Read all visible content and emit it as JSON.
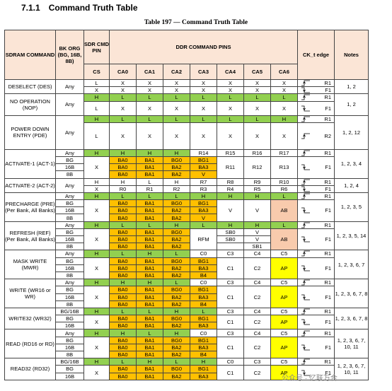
{
  "section": {
    "number": "7.1.1",
    "title": "Command Truth Table"
  },
  "caption": "Table 197 — Command Truth Table",
  "headers": {
    "sdram_command": "SDRAM COMMAND",
    "bk_org": "BK ORG (BG, 16B, 8B)",
    "sdr_cmd_pin": "SDR CMD PIN",
    "ddr_command_pins": "DDR COMMAND PINS",
    "ck_edge": "CK_t edge",
    "notes": "Notes",
    "cs": "CS",
    "ca": [
      "CA0",
      "CA1",
      "CA2",
      "CA3",
      "CA4",
      "CA5",
      "CA6"
    ]
  },
  "colors": {
    "green": "#92d050",
    "orange": "#ffc000",
    "yellow": "#ffff00",
    "peach": "#f8cbad",
    "header": "#fbe5d6"
  },
  "rows": [
    {
      "cmd": "DESELECT (DES)",
      "org": "Any",
      "notes": "1, 2",
      "lines": [
        {
          "cs": "L",
          "ca": [
            "X",
            "X",
            "X",
            "X",
            "X",
            "X",
            "X"
          ],
          "edge": "R1"
        },
        {
          "cs": "X",
          "ca": [
            "X",
            "X",
            "X",
            "X",
            "X",
            "X",
            "X"
          ],
          "edge": "F1"
        }
      ]
    },
    {
      "cmd": "NO OPERATION (NOP)",
      "org": "Any",
      "notes": "1, 2",
      "lines": [
        {
          "cs": "H",
          "ca": [
            "L",
            "L",
            "L",
            "L",
            "L",
            "L",
            "L"
          ],
          "edge": "R1",
          "c": "g"
        },
        {
          "cs": "L",
          "ca": [
            "X",
            "X",
            "X",
            "X",
            "X",
            "X",
            "X"
          ],
          "edge": "F1",
          "tall": true
        }
      ]
    },
    {
      "cmd": "POWER DOWN ENTRY (PDE)",
      "org": "Any",
      "notes": "1, 2, 12",
      "lines": [
        {
          "cs": "H",
          "ca": [
            "L",
            "L",
            "L",
            "L",
            "L",
            "L",
            "H"
          ],
          "edge": "R1",
          "c": "g"
        },
        {
          "cs": "L",
          "ca": [
            "X",
            "X",
            "X",
            "X",
            "X",
            "X",
            "X"
          ],
          "edge": "R2",
          "tall": true
        }
      ]
    }
  ],
  "activate1": {
    "cmd": "ACTIVATE-1 (ACT-1)",
    "notes": "1, 2, 3, 4",
    "any": "Any",
    "bg": "BG",
    "b16": "16B",
    "b8": "8B",
    "top": [
      "H",
      "H",
      "H",
      "H",
      "R14",
      "R15",
      "R16",
      "R17"
    ],
    "mid1": [
      "BA0",
      "BA1",
      "BG0",
      "BG1"
    ],
    "mid2": [
      "BA0",
      "BA1",
      "BA2",
      "BA3"
    ],
    "mid3": [
      "BA0",
      "BA1",
      "BA2",
      "V"
    ],
    "cs": "X",
    "r": [
      "R11",
      "R12",
      "R13"
    ],
    "e1": "R1",
    "e2": "F1"
  },
  "activate2": {
    "cmd": "ACTIVATE-2 (ACT-2)",
    "notes": "1, 2, 4",
    "any": "Any",
    "l1": [
      "H",
      "H",
      "L",
      "H",
      "R7",
      "R8",
      "R9",
      "R10"
    ],
    "l2": [
      "X",
      "R0",
      "R1",
      "R2",
      "R3",
      "R4",
      "R5",
      "R6"
    ],
    "e1": "R1",
    "e2": "F1"
  },
  "precharge": {
    "cmd": "PRECHARGE (PRE) (Per Bank, All Banks)",
    "notes": "1, 2, 3, 5",
    "any": "Any",
    "bg": "BG",
    "b16": "16B",
    "b8": "8B",
    "top": [
      "H",
      "L",
      "L",
      "L",
      "H",
      "H",
      "H",
      "L"
    ],
    "m1": [
      "BA0",
      "BA1",
      "BG0",
      "BG1"
    ],
    "m2": [
      "BA0",
      "BA1",
      "BA2",
      "BA3"
    ],
    "m3": [
      "BA0",
      "BA1",
      "BA2",
      "V"
    ],
    "cs": "X",
    "v1": "V",
    "v2": "V",
    "ab": "AB",
    "e1": "R1",
    "e2": "F1"
  },
  "refresh": {
    "cmd": "REFRESH (REF) (Per Bank, All Banks)",
    "notes": "1, 2, 3, 5, 14",
    "any": "Any",
    "bg": "BG",
    "b16": "16B",
    "b8": "8B",
    "top": [
      "H",
      "L",
      "L",
      "H",
      "L",
      "H",
      "H",
      "L"
    ],
    "m1": [
      "BA0",
      "BA1",
      "BG0"
    ],
    "m2": [
      "BA0",
      "BA1",
      "BA2"
    ],
    "m3": [
      "BA0",
      "BA1",
      "BA2"
    ],
    "cs": "X",
    "rfm": "RFM",
    "sb0a": "SB0",
    "sb0b": "SB0",
    "v": "V",
    "sb1": "SB1",
    "ab": "AB",
    "e1": "R1",
    "e2": "F1"
  },
  "maskwrite": {
    "cmd": "MASK WRITE (MWR)",
    "notes": "1, 2, 3, 6, 7",
    "any": "Any",
    "bg": "BG",
    "b16": "16B",
    "b8": "8B",
    "top": [
      "H",
      "L",
      "H",
      "L",
      "C0",
      "C3",
      "C4",
      "C5"
    ],
    "m1": [
      "BA0",
      "BA1",
      "BG0",
      "BG1"
    ],
    "m2": [
      "BA0",
      "BA1",
      "BA2",
      "BA3"
    ],
    "m3": [
      "BA0",
      "BA1",
      "BA2",
      "B4"
    ],
    "cs": "X",
    "c1": "C1",
    "c2": "C2",
    "ap": "AP",
    "e1": "R1",
    "e2": "F1"
  },
  "write": {
    "cmd": "WRITE (WR16 or WR)",
    "notes": "1, 2, 3, 6, 7, 8",
    "any": "Any",
    "bg": "BG",
    "b16": "16B",
    "b8": "8B",
    "top": [
      "H",
      "H",
      "H",
      "L",
      "C0",
      "C3",
      "C4",
      "C5"
    ],
    "m1": [
      "BA0",
      "BA1",
      "BG0",
      "BG1"
    ],
    "m2": [
      "BA0",
      "BA1",
      "BA2",
      "BA3"
    ],
    "m3": [
      "BA0",
      "BA1",
      "BA2",
      "B4"
    ],
    "cs": "X",
    "c1": "C1",
    "c2": "C2",
    "ap": "AP",
    "e1": "R1",
    "e2": "F1"
  },
  "write32": {
    "cmd": "WRITE32 (WR32)",
    "notes": "1, 2, 3, 6, 7, 8",
    "a": "BG/16B",
    "bg": "BG",
    "b8": "16B",
    "top": [
      "H",
      "L",
      "L",
      "H",
      "L",
      "C3",
      "C4",
      "C5"
    ],
    "m1": [
      "BA0",
      "BA1",
      "BG0",
      "BG1"
    ],
    "m2": [
      "BA0",
      "BA1",
      "BA2",
      "BA3"
    ],
    "cs": "X",
    "c1": "C1",
    "c2": "C2",
    "ap": "AP",
    "e1": "R1",
    "e2": "F1"
  },
  "read": {
    "cmd": "READ (RD16 or RD)",
    "notes": "1, 2, 3, 6, 7, 10, 11",
    "any": "Any",
    "bg": "BG",
    "b16": "16B",
    "b8": "8B",
    "top": [
      "H",
      "H",
      "L",
      "H",
      "C0",
      "C3",
      "C4",
      "C5"
    ],
    "m1": [
      "BA0",
      "BA1",
      "BG0",
      "BG1"
    ],
    "m2": [
      "BA0",
      "BA1",
      "BA2",
      "BA3"
    ],
    "m3": [
      "BA0",
      "BA1",
      "BA2",
      "B4"
    ],
    "cs": "X",
    "c1": "C1",
    "c2": "C2",
    "ap": "AP",
    "e1": "R1",
    "e2": "F1"
  },
  "read32": {
    "cmd": "READ32 (RD32)",
    "notes": "1, 2, 3, 6, 7, 10, 11",
    "a": "BG/16B",
    "bg": "BG",
    "b8": "16B",
    "top": [
      "H",
      "L",
      "H",
      "L",
      "H",
      "C0",
      "C3",
      "C5"
    ],
    "m1": [
      "BA0",
      "BA1",
      "BG0",
      "BG1"
    ],
    "m2": [
      "BA0",
      "BA1",
      "BA2",
      "BA3"
    ],
    "cs": "X",
    "c1": "C1",
    "c2": "C2",
    "ap": "AP",
    "e1": "R1",
    "e2": "F1"
  },
  "watermark": "公众号 · 忆联万合"
}
